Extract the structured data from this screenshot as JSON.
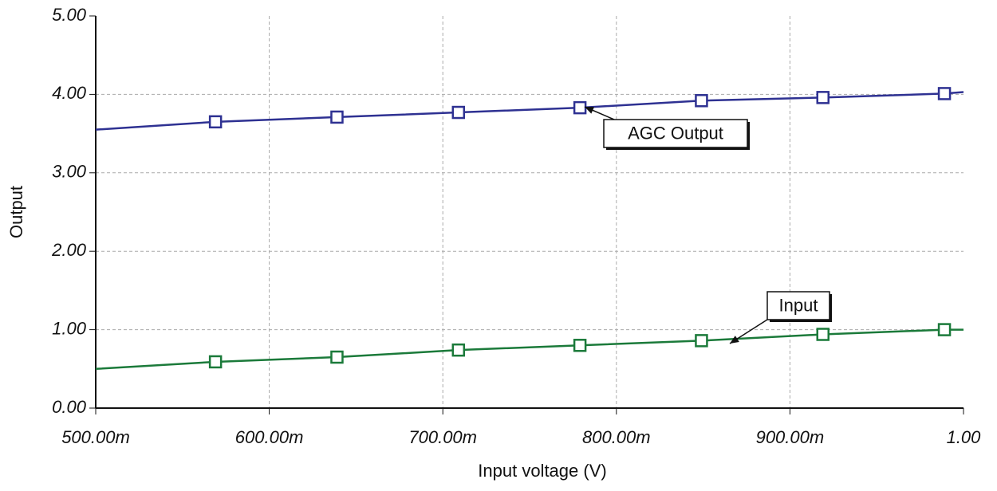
{
  "chart_data": {
    "type": "line",
    "x_label": "Input voltage (V)",
    "y_label": "Output",
    "x": [
      0.5,
      0.569,
      0.639,
      0.709,
      0.779,
      0.849,
      0.919,
      0.989,
      1.0
    ],
    "series": [
      {
        "name": "AGC Output",
        "color": "#2e3192",
        "values": [
          3.55,
          3.65,
          3.71,
          3.77,
          3.83,
          3.92,
          3.96,
          4.01,
          4.03
        ]
      },
      {
        "name": "Input",
        "color": "#1b7a3a",
        "values": [
          0.5,
          0.59,
          0.65,
          0.74,
          0.8,
          0.86,
          0.94,
          1.0,
          1.0
        ]
      }
    ],
    "xlim": [
      0.5,
      1.0
    ],
    "xticks": [
      {
        "value": 0.5,
        "label": "500.00m"
      },
      {
        "value": 0.6,
        "label": "600.00m"
      },
      {
        "value": 0.7,
        "label": "700.00m"
      },
      {
        "value": 0.8,
        "label": "800.00m"
      },
      {
        "value": 0.9,
        "label": "900.00m"
      },
      {
        "value": 1.0,
        "label": "1.00"
      }
    ],
    "ylim": [
      0,
      5
    ],
    "yticks": [
      {
        "value": 0,
        "label": "0.00"
      },
      {
        "value": 1,
        "label": "1.00"
      },
      {
        "value": 2,
        "label": "2.00"
      },
      {
        "value": 3,
        "label": "3.00"
      },
      {
        "value": 4,
        "label": "4.00"
      },
      {
        "value": 5,
        "label": "5.00"
      }
    ],
    "grid": true,
    "marker": "square"
  }
}
